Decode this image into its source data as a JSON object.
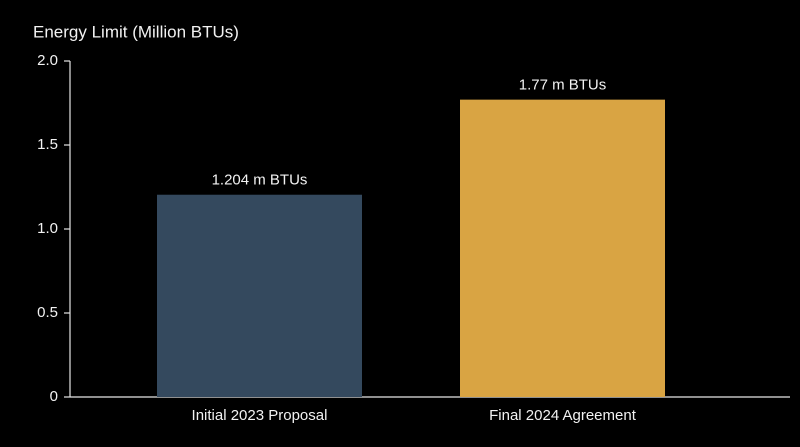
{
  "chart_data": {
    "type": "bar",
    "y_label": "Energy Limit (Million BTUs)",
    "categories": [
      "Initial 2023 Proposal",
      "Final 2024 Agreement"
    ],
    "values": [
      1.204,
      1.77
    ],
    "value_labels": [
      "1.204 m BTUs",
      "1.77 m BTUs"
    ],
    "colors": [
      "#34495e",
      "#d9a443"
    ],
    "ylim": [
      0,
      2
    ],
    "yticks": [
      0,
      0.5,
      {
        "value": 1,
        "label": "1.0"
      },
      1.5,
      {
        "value": 2,
        "label": "2.0"
      }
    ],
    "grid": false
  }
}
